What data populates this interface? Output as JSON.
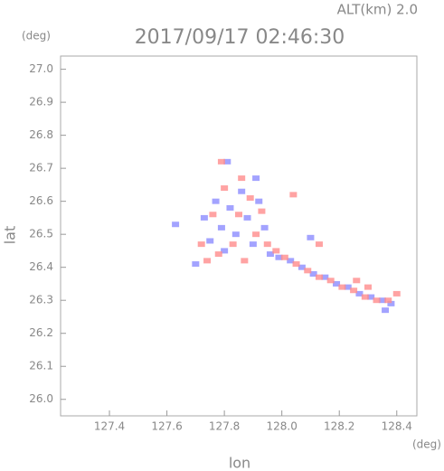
{
  "chart_data": {
    "type": "scatter",
    "title": "2017/09/17 02:46:30",
    "altitude_label": "ALT(km) 2.0",
    "x_label": "lon",
    "x_unit": "(deg)",
    "y_label": "lat",
    "y_unit": "(deg)",
    "xlim": [
      127.23,
      128.47
    ],
    "ylim": [
      25.95,
      27.04
    ],
    "xticks": [
      127.4,
      127.6,
      127.8,
      {
        "value": 128,
        "label": "128.0"
      },
      128.2,
      128.4
    ],
    "yticks": [
      {
        "value": 26,
        "label": "26.0"
      },
      26.1,
      26.2,
      26.3,
      26.4,
      26.5,
      26.6,
      26.7,
      26.8,
      26.9,
      {
        "value": 27,
        "label": "27.0"
      }
    ],
    "grid": false,
    "series": [
      {
        "color": "#8c8cff",
        "x": [
          127.7,
          127.73,
          127.75,
          127.77,
          127.79,
          127.8,
          127.82,
          127.84,
          127.86,
          127.88,
          127.9,
          127.92,
          127.94,
          127.96,
          127.99,
          128.03,
          128.07,
          128.11,
          128.15,
          128.19,
          128.23,
          128.27,
          128.31,
          128.35,
          128.38,
          127.81,
          127.63,
          128.1,
          127.91,
          128.36
        ],
        "values": [
          26.41,
          26.55,
          26.48,
          26.6,
          26.52,
          26.45,
          26.58,
          26.5,
          26.63,
          26.55,
          26.47,
          26.6,
          26.52,
          26.44,
          26.43,
          26.42,
          26.4,
          26.38,
          26.37,
          26.35,
          26.34,
          26.32,
          26.31,
          26.3,
          26.29,
          26.72,
          26.53,
          26.49,
          26.67,
          26.27
        ]
      },
      {
        "color": "#ff8c8c",
        "x": [
          127.72,
          127.74,
          127.76,
          127.78,
          127.8,
          127.83,
          127.85,
          127.87,
          127.89,
          127.91,
          127.93,
          127.95,
          127.98,
          128.01,
          128.05,
          128.09,
          128.13,
          128.17,
          128.21,
          128.25,
          128.29,
          128.33,
          128.37,
          128.4,
          127.79,
          128.04,
          128.13,
          127.86,
          128.26,
          128.3
        ],
        "values": [
          26.47,
          26.42,
          26.56,
          26.44,
          26.64,
          26.47,
          26.56,
          26.42,
          26.61,
          26.5,
          26.57,
          26.47,
          26.45,
          26.43,
          26.41,
          26.39,
          26.37,
          26.36,
          26.34,
          26.33,
          26.31,
          26.3,
          26.3,
          26.32,
          26.72,
          26.62,
          26.47,
          26.67,
          26.36,
          26.34
        ]
      }
    ]
  }
}
